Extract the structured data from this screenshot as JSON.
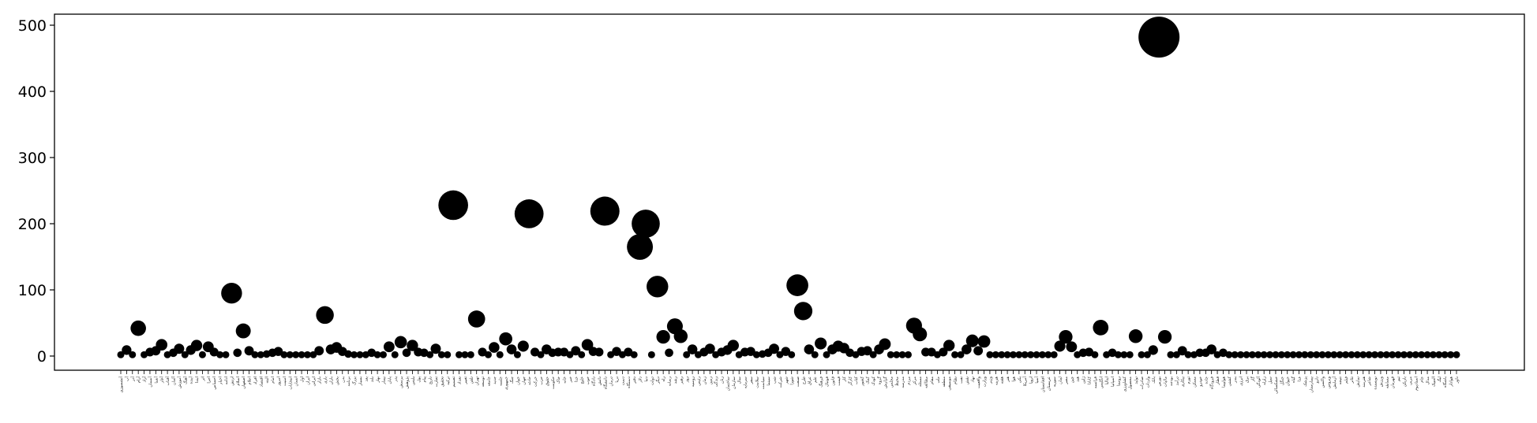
{
  "chart_data": {
    "type": "scatter",
    "title": "",
    "xlabel": "",
    "ylabel": "",
    "ylim": [
      -20,
      505
    ],
    "yticks": [
      0,
      100,
      200,
      300,
      400,
      500
    ],
    "grid": false,
    "marker_color": "#000000",
    "size_encodes": "value",
    "categories": [
      "آتشسوزی",
      "آب",
      "آذر",
      "آرام",
      "آزاد",
      "آسمان",
      "آشنا",
      "آغاز",
      "آفتاب",
      "آلمان",
      "آموزش",
      "آهنگ",
      "آینده",
      "ابتدا",
      "اثر",
      "اجرا",
      "احساس",
      "اخبار",
      "ادامه",
      "ارتش",
      "اسلام",
      "اصفهان",
      "اعلام",
      "افراد",
      "اقتصاد",
      "البته",
      "امام",
      "امروز",
      "امنیت",
      "انتخابات",
      "انسان",
      "اول",
      "ایران",
      "ایرانی",
      "بازار",
      "بازی",
      "باران",
      "بخش",
      "بدن",
      "برنامه",
      "بزرگ",
      "بسیار",
      "بعد",
      "بلند",
      "بهار",
      "بیمار",
      "پایان",
      "پدر",
      "پرسش",
      "پژوهش",
      "پلیس",
      "پول",
      "پیام",
      "تاریخ",
      "تجارت",
      "تحقیق",
      "ترکیه",
      "تصمیم",
      "تعداد",
      "تغییر",
      "تلفن",
      "تهران",
      "توسعه",
      "جامعه",
      "جدید",
      "جلسه",
      "جمهوری",
      "جنگ",
      "جوان",
      "جهان",
      "حادثه",
      "حرکت",
      "حزب",
      "حقوق",
      "حکومت",
      "خاک",
      "خانه",
      "خبر",
      "خدا",
      "خلیج",
      "خوب",
      "دادگاه",
      "دانش",
      "دانشگاه",
      "درمان",
      "دریا",
      "دست",
      "دستگاه",
      "دفتر",
      "دلار",
      "دنیا",
      "دولت",
      "دیگر",
      "راه",
      "رسانه",
      "رشد",
      "رهبر",
      "روز",
      "روسیه",
      "رئیس",
      "زمان",
      "زمین",
      "زندگی",
      "زنان",
      "ساختمان",
      "سازمان",
      "سال",
      "سرمایه",
      "سفر",
      "سلامت",
      "سیاست",
      "سینما",
      "شب",
      "شرکت",
      "شهر",
      "شورا",
      "صنعت",
      "طرح",
      "عراق",
      "علم",
      "فرهنگ",
      "فوتبال",
      "قانون",
      "قیمت",
      "کار",
      "کارگر",
      "کتاب",
      "کشور",
      "کمک",
      "کودک",
      "گروه",
      "گزارش",
      "مجلس",
      "محیط",
      "مدرسه",
      "مردم",
      "مرکز",
      "مسئله",
      "مطالعه",
      "مقام",
      "ملی",
      "منطقه",
      "موسیقی",
      "نظام",
      "نفت",
      "نقش",
      "نهاد",
      "واقعیت",
      "وزارت",
      "وزیر",
      "هزینه",
      "هفته",
      "هنر",
      "هوا",
      "یکی",
      "آمریکا",
      "اروپا",
      "آسیا",
      "افغانستان",
      "عربستان",
      "سوریه",
      "لبنان",
      "مصر",
      "چین",
      "هند",
      "ژاپن",
      "کانادا",
      "فرانسه",
      "انگلیس",
      "ایتالیا",
      "اسپانیا",
      "روستا",
      "کشاورزی",
      "محصول",
      "تولید",
      "صادرات",
      "واردات",
      "بانک",
      "بورس",
      "مالیات",
      "بودجه",
      "درآمد",
      "بیکاری",
      "تورم",
      "مسکن",
      "خودرو",
      "جاده",
      "فرودگاه",
      "قطار",
      "هواپیما",
      "کشتی",
      "بندر",
      "انرژی",
      "برق",
      "گاز",
      "آلودگی",
      "زلزله",
      "سیل",
      "خشکسالی",
      "جنگل",
      "حیوان",
      "گیاه",
      "غذا",
      "پزشک",
      "بیمارستان",
      "دارو",
      "واکسن",
      "ویروس",
      "آزمایش",
      "نتیجه",
      "فیلم",
      "تئاتر",
      "نمایش",
      "هنرمند",
      "شاعر",
      "نویسنده",
      "ورزش",
      "مسابقه",
      "قهرمان",
      "تیم",
      "بازیکن",
      "مربی",
      "استادیوم",
      "جام",
      "مدال",
      "المپیک",
      "لیگ",
      "باشگاه",
      "هوادار",
      "داور"
    ],
    "values": [
      2,
      9,
      2,
      42,
      2,
      6,
      8,
      17,
      2,
      5,
      11,
      2,
      9,
      16,
      2,
      14,
      6,
      2,
      2,
      95,
      5,
      38,
      8,
      2,
      2,
      3,
      5,
      7,
      2,
      2,
      2,
      2,
      2,
      2,
      8,
      62,
      10,
      13,
      7,
      3,
      2,
      2,
      2,
      5,
      2,
      2,
      14,
      2,
      21,
      5,
      16,
      6,
      5,
      2,
      11,
      2,
      2,
      228,
      2,
      2,
      2,
      56,
      6,
      2,
      13,
      2,
      26,
      10,
      2,
      15,
      215,
      6,
      2,
      10,
      5,
      6,
      6,
      2,
      8,
      2,
      17,
      7,
      6,
      219,
      2,
      7,
      2,
      6,
      2,
      165,
      200,
      2,
      105,
      29,
      5,
      45,
      30,
      2,
      10,
      2,
      6,
      11,
      2,
      6,
      9,
      16,
      2,
      6,
      7,
      2,
      3,
      5,
      11,
      2,
      7,
      2,
      107,
      68,
      10,
      2,
      19,
      2,
      10,
      15,
      12,
      5,
      2,
      7,
      8,
      2,
      10,
      18,
      2,
      2,
      2,
      2,
      46,
      33,
      6,
      6,
      2,
      6,
      16,
      2,
      2,
      10,
      23,
      8,
      22,
      2,
      2,
      2,
      2,
      2,
      2,
      2,
      2,
      2,
      2,
      2,
      2,
      15,
      29,
      14,
      2,
      5,
      6,
      2,
      43,
      2,
      5,
      2,
      2,
      2,
      30,
      2,
      2,
      9,
      482,
      29,
      2,
      2,
      8,
      2,
      2,
      5,
      5,
      10,
      2,
      5,
      2,
      2,
      2,
      2,
      2,
      2,
      2,
      2,
      2,
      2,
      2,
      2,
      2,
      2,
      2,
      2,
      2,
      2,
      2,
      2,
      2,
      2,
      2,
      2,
      2,
      2,
      2,
      2,
      2,
      2,
      2,
      2,
      2,
      2,
      2,
      2,
      2,
      2,
      2,
      2
    ]
  }
}
